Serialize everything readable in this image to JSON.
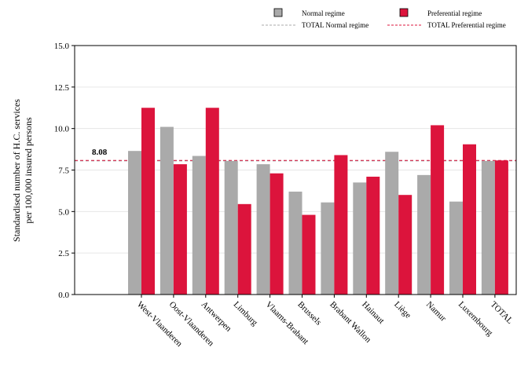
{
  "chart_data": {
    "type": "bar",
    "ylabel_line1": "Standardised number of H.C. services",
    "ylabel_line2": "per 100,000 insured persons",
    "xlabel": "",
    "ylim": [
      0,
      15
    ],
    "yticks": [
      "0.0",
      "2.5",
      "5.0",
      "7.5",
      "10.0",
      "12.5",
      "15.0"
    ],
    "ytick_values": [
      0,
      2.5,
      5,
      7.5,
      10,
      12.5,
      15
    ],
    "grid": true,
    "legend_position": "top",
    "categories": [
      "West-Vlaanderen",
      "Oost-Vlaanderen",
      "Antwerpen",
      "Limburg",
      "Vlaams-Brabant",
      "Brussels",
      "Brabant Wallon",
      "Hainaut",
      "Liège",
      "Namur",
      "Luxembourg",
      "TOTAL"
    ],
    "series": [
      {
        "name": "Normal regime",
        "color": "#aaaaaa",
        "values": [
          8.65,
          10.1,
          8.35,
          8.05,
          7.85,
          6.2,
          5.55,
          6.75,
          8.6,
          7.2,
          5.6,
          8.05
        ]
      },
      {
        "name": "Preferential regime",
        "color": "#dc143c",
        "values": [
          11.25,
          7.85,
          11.25,
          5.45,
          7.3,
          4.8,
          8.4,
          7.1,
          6.0,
          10.2,
          9.05,
          8.08
        ]
      }
    ],
    "reference_lines": [
      {
        "name": "TOTAL Normal regime",
        "value": 8.05,
        "color": "#aaaaaa"
      },
      {
        "name": "TOTAL Preferential regime",
        "value": 8.08,
        "color": "#dc143c"
      }
    ],
    "annotation": "8.08"
  }
}
